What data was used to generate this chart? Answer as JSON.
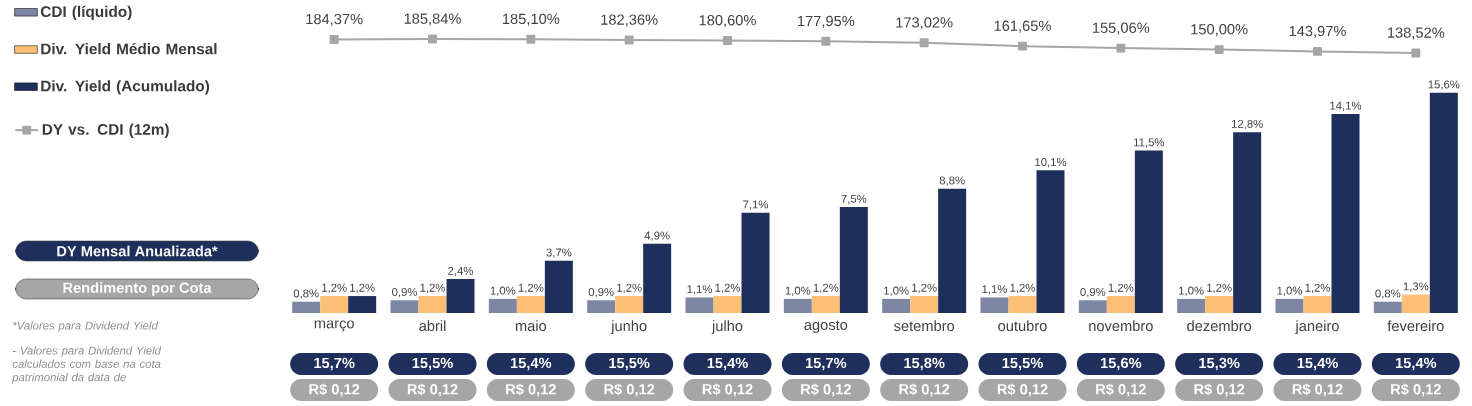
{
  "chart_data": [
    {
      "type": "line",
      "categories": [
        null,
        null,
        null,
        null,
        null,
        null,
        null,
        null,
        null,
        null,
        null,
        null
      ],
      "tick_labels": false,
      "legend": "left",
      "marker": "square",
      "line_style": "solid",
      "series": [
        {
          "name": "DY vs. CDI (12m)",
          "color": "#a6a6a6",
          "values": [
            184.37,
            185.84,
            185.1,
            182.36,
            180.6,
            177.95,
            173.02,
            161.65,
            155.06,
            150.0,
            143.97,
            138.52
          ],
          "value_labels": [
            "184,37%",
            "185,84%",
            "185,10%",
            "182,36%",
            "180,60%",
            "177,95%",
            "173,02%",
            "161,65%",
            "155,06%",
            "150,00%",
            "143,97%",
            "138,52%"
          ]
        }
      ]
    },
    {
      "type": "bar",
      "categories": [
        "março",
        "abril",
        "maio",
        "junho",
        "julho",
        "agosto",
        "setembro",
        "outubro",
        "novembro",
        "dezembro",
        "janeiro",
        "fevereiro"
      ],
      "tick_labels": "x",
      "legend": "left",
      "series": [
        {
          "name": "CDI (líquido)",
          "color": "#7d86a3",
          "values": [
            0.8,
            0.9,
            1.0,
            0.9,
            1.1,
            1.0,
            1.0,
            1.1,
            0.9,
            1.0,
            1.0,
            0.8
          ],
          "value_labels": [
            "0,8%",
            "0,9%",
            "1,0%",
            "0,9%",
            "1,1%",
            "1,0%",
            "1,0%",
            "1,1%",
            "0,9%",
            "1,0%",
            "1,0%",
            "0,8%"
          ]
        },
        {
          "name": "Div. Yield Médio Mensal",
          "color": "#fcbf76",
          "values": [
            1.2,
            1.2,
            1.2,
            1.2,
            1.2,
            1.2,
            1.2,
            1.2,
            1.2,
            1.2,
            1.2,
            1.3
          ],
          "value_labels": [
            "1,2%",
            "1,2%",
            "1,2%",
            "1,2%",
            "1,2%",
            "1,2%",
            "1,2%",
            "1,2%",
            "1,2%",
            "1,2%",
            "1,2%",
            "1,3%"
          ]
        },
        {
          "name": "Div. Yield (Acumulado)",
          "color": "#1f2f5c",
          "values": [
            1.2,
            2.4,
            3.7,
            4.9,
            7.1,
            7.5,
            8.8,
            10.1,
            11.5,
            12.8,
            14.1,
            15.6
          ],
          "value_labels": [
            "1,2%",
            "2,4%",
            "3,7%",
            "4,9%",
            "7,1%",
            "7,5%",
            "8,8%",
            "10,1%",
            "11,5%",
            "12,8%",
            "14,1%",
            "15,6%"
          ]
        }
      ],
      "annotations": [
        "DY Mensal Anualizada*",
        "15,7%",
        "15,5%",
        "15,4%",
        "15,5%",
        "15,4%",
        "15,7%",
        "15,8%",
        "15,5%",
        "15,6%",
        "15,3%",
        "15,4%",
        "15,4%",
        "Rendimento por Cota",
        "R$ 0,12",
        "R$ 0,12",
        "R$ 0,12",
        "R$ 0,12",
        "R$ 0,12",
        "R$ 0,12",
        "R$ 0,12",
        "R$ 0,12",
        "R$ 0,12",
        "R$ 0,12",
        "R$ 0,12",
        "R$ 0,12",
        "*Valores para Dividend Yield",
        "- Valores para Dividend Yield calculados com base na cota patrimonial da data de"
      ]
    }
  ]
}
